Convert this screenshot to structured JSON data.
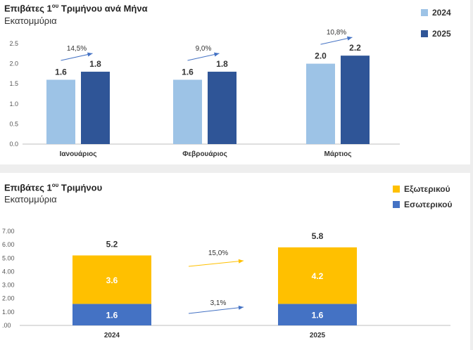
{
  "chart_data": [
    {
      "type": "bar",
      "title_main": "Επιβάτες 1",
      "title_sup": "ου",
      "title_rest": " Τριμήνου ανά Μήνα",
      "subtitle": "Εκατομμύρια",
      "categories": [
        "Ιανουάριος",
        "Φεβρουάριος",
        "Μάρτιος"
      ],
      "series": [
        {
          "name": "2024",
          "color": "#9dc3e6",
          "values": [
            1.6,
            1.6,
            2.0
          ],
          "labels": [
            "1.6",
            "1.6",
            "2.0"
          ]
        },
        {
          "name": "2025",
          "color": "#2f5597",
          "values": [
            1.8,
            1.8,
            2.2
          ],
          "labels": [
            "1.8",
            "1.8",
            "2.2"
          ]
        }
      ],
      "growth_labels": [
        "14,5%",
        "9,0%",
        "10,8%"
      ],
      "ylim": [
        0,
        2.5
      ],
      "yticks": [
        "0.0",
        "0.5",
        "1.0",
        "1.5",
        "2.0",
        "2.5"
      ],
      "legend_position": "right",
      "grid": false
    },
    {
      "type": "stacked-bar",
      "title_main": "Επιβάτες 1",
      "title_sup": "ου",
      "title_rest": " Τριμήνου",
      "subtitle": "Εκατομμύρια",
      "categories": [
        "2024",
        "2025"
      ],
      "series": [
        {
          "name": "Εσωτερικού",
          "color": "#4472c4",
          "values": [
            1.6,
            1.6
          ],
          "labels": [
            "1.6",
            "1.6"
          ]
        },
        {
          "name": "Εξωτερικού",
          "color": "#ffc000",
          "values": [
            3.6,
            4.2
          ],
          "labels": [
            "3.6",
            "4.2"
          ]
        }
      ],
      "totals": [
        "5.2",
        "5.8"
      ],
      "growth_labels": [
        {
          "series": "Εξωτερικού",
          "text": "15,0%",
          "color": "#ffc000"
        },
        {
          "series": "Εσωτερικού",
          "text": "3,1%",
          "color": "#4472c4"
        }
      ],
      "ylim": [
        0,
        7
      ],
      "yticks": [
        ".00",
        "1.00",
        "2.00",
        "3.00",
        "4.00",
        "5.00",
        "6.00",
        "7.00"
      ],
      "legend_position": "top-right",
      "grid": false
    }
  ]
}
